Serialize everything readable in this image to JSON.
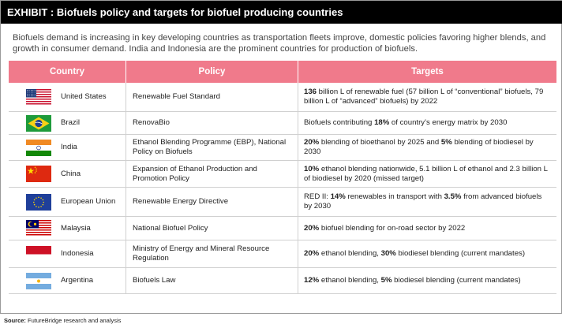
{
  "exhibit": {
    "title": "EXHIBIT : Biofuels policy and targets for biofuel producing countries",
    "intro": "Biofuels demand is increasing in key developing countries as transportation fleets improve, domestic policies favoring higher blends, and growth in consumer demand. India and Indonesia are the prominent countries for production of biofuels."
  },
  "table": {
    "headers": [
      "Country",
      "Policy",
      "Targets"
    ],
    "rows": [
      {
        "country": "United States",
        "flag_icon": "us-flag-icon",
        "policy": "Renewable Fuel Standard",
        "targets": [
          {
            "t": "136",
            "b": true
          },
          {
            "t": " billion L of renewable fuel (57 billion L of “conventional” biofuels, 79 billion L of “advanced” biofuels) by 2022",
            "b": false
          }
        ]
      },
      {
        "country": "Brazil",
        "flag_icon": "brazil-flag-icon",
        "policy": "RenovaBio",
        "targets": [
          {
            "t": "Biofuels contributing ",
            "b": false
          },
          {
            "t": "18%",
            "b": true
          },
          {
            "t": " of country’s energy matrix by 2030",
            "b": false
          }
        ]
      },
      {
        "country": "India",
        "flag_icon": "india-flag-icon",
        "policy": "Ethanol Blending Programme (EBP), National Policy on Biofuels",
        "targets": [
          {
            "t": "20%",
            "b": true
          },
          {
            "t": " blending of bioethanol by 2025 and ",
            "b": false
          },
          {
            "t": "5%",
            "b": true
          },
          {
            "t": " blending of biodiesel by 2030",
            "b": false
          }
        ]
      },
      {
        "country": "China",
        "flag_icon": "china-flag-icon",
        "policy": "Expansion of Ethanol Production and Promotion Policy",
        "targets": [
          {
            "t": "10%",
            "b": true
          },
          {
            "t": " ethanol blending nationwide, 5.1 billion L of ethanol and 2.3 billion L of biodiesel by 2020 (missed target)",
            "b": false
          }
        ]
      },
      {
        "country": "European Union",
        "flag_icon": "eu-flag-icon",
        "policy": "Renewable Energy Directive",
        "targets": [
          {
            "t": "RED II: ",
            "b": false
          },
          {
            "t": "14%",
            "b": true
          },
          {
            "t": " renewables in transport with ",
            "b": false
          },
          {
            "t": "3.5%",
            "b": true
          },
          {
            "t": " from advanced biofuels by 2030",
            "b": false
          }
        ]
      },
      {
        "country": "Malaysia",
        "flag_icon": "malaysia-flag-icon",
        "policy": "National Biofuel Policy",
        "targets": [
          {
            "t": "20%",
            "b": true
          },
          {
            "t": " biofuel blending for on-road sector by 2022",
            "b": false
          }
        ]
      },
      {
        "country": "Indonesia",
        "flag_icon": "indonesia-flag-icon",
        "policy": "Ministry of Energy and Mineral Resource Regulation",
        "targets": [
          {
            "t": "20%",
            "b": true
          },
          {
            "t": " ethanol blending, ",
            "b": false
          },
          {
            "t": "30%",
            "b": true
          },
          {
            "t": " biodiesel blending (current mandates)",
            "b": false
          }
        ]
      },
      {
        "country": "Argentina",
        "flag_icon": "argentina-flag-icon",
        "policy": "Biofuels Law",
        "targets": [
          {
            "t": "12%",
            "b": true
          },
          {
            "t": " ethanol blending, ",
            "b": false
          },
          {
            "t": "5%",
            "b": true
          },
          {
            "t": " biodiesel blending (current mandates)",
            "b": false
          }
        ]
      }
    ]
  },
  "footer": {
    "source_label": "Source:",
    "source_text": " FutureBridge research and analysis"
  },
  "colors": {
    "title_bar": "#000000",
    "header_bg": "#f07a8b",
    "header_text": "#ffffff"
  }
}
